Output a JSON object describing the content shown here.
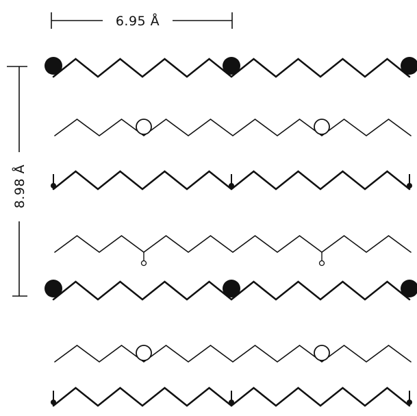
{
  "dimensions": {
    "horizontal_spacing": "6.95 Å",
    "vertical_spacing": "8.98 Å"
  },
  "colors": {
    "ink": "#111111",
    "paper": "#ffffff"
  }
}
